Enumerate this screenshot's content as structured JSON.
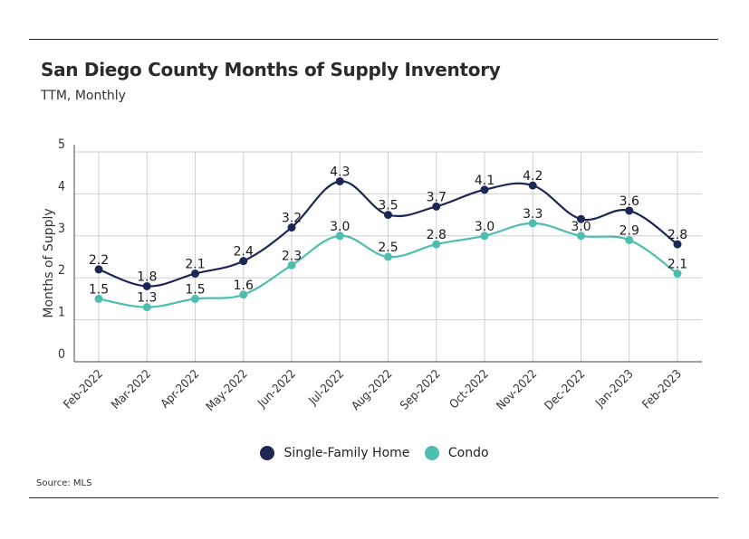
{
  "title": "San Diego County Months of Supply Inventory",
  "subtitle": "TTM, Monthly",
  "source": "Source:  MLS",
  "colors": {
    "single_family": "#1c2753",
    "condo": "#4dbdae",
    "grid": "#cfcfcf",
    "axis": "#444444"
  },
  "chart_data": {
    "type": "line",
    "title": "San Diego County Months of Supply Inventory",
    "subtitle": "TTM, Monthly",
    "xlabel": "",
    "ylabel": "Months of Supply",
    "ylim": [
      0,
      5
    ],
    "yticks": [
      "0",
      "1",
      "2",
      "3",
      "4",
      "5"
    ],
    "grid": true,
    "legend": "bottom-center",
    "categories": [
      "Feb-2022",
      "Mar-2022",
      "Apr-2022",
      "May-2022",
      "Jun-2022",
      "Jul-2022",
      "Aug-2022",
      "Sep-2022",
      "Oct-2022",
      "Nov-2022",
      "Dec-2022",
      "Jan-2023",
      "Feb-2023"
    ],
    "series": [
      {
        "name": "Single-Family Home",
        "values": [
          2.2,
          1.8,
          2.1,
          2.4,
          3.2,
          4.3,
          3.5,
          3.7,
          4.1,
          4.2,
          3.4,
          3.6,
          2.8
        ],
        "labels": [
          "2.2",
          "1.8",
          "2.1",
          "2.4",
          "3.2",
          "4.3",
          "3.5",
          "3.7",
          "4.1",
          "4.2",
          "",
          "3.6",
          "2.8"
        ]
      },
      {
        "name": "Condo",
        "values": [
          1.5,
          1.3,
          1.5,
          1.6,
          2.3,
          3.0,
          2.5,
          2.8,
          3.0,
          3.3,
          3.0,
          2.9,
          2.1
        ],
        "labels": [
          "1.5",
          "1.3",
          "1.5",
          "1.6",
          "2.3",
          "3.0",
          "2.5",
          "2.8",
          "3.0",
          "3.3",
          "3.0",
          "2.9",
          "2.1"
        ]
      }
    ]
  }
}
